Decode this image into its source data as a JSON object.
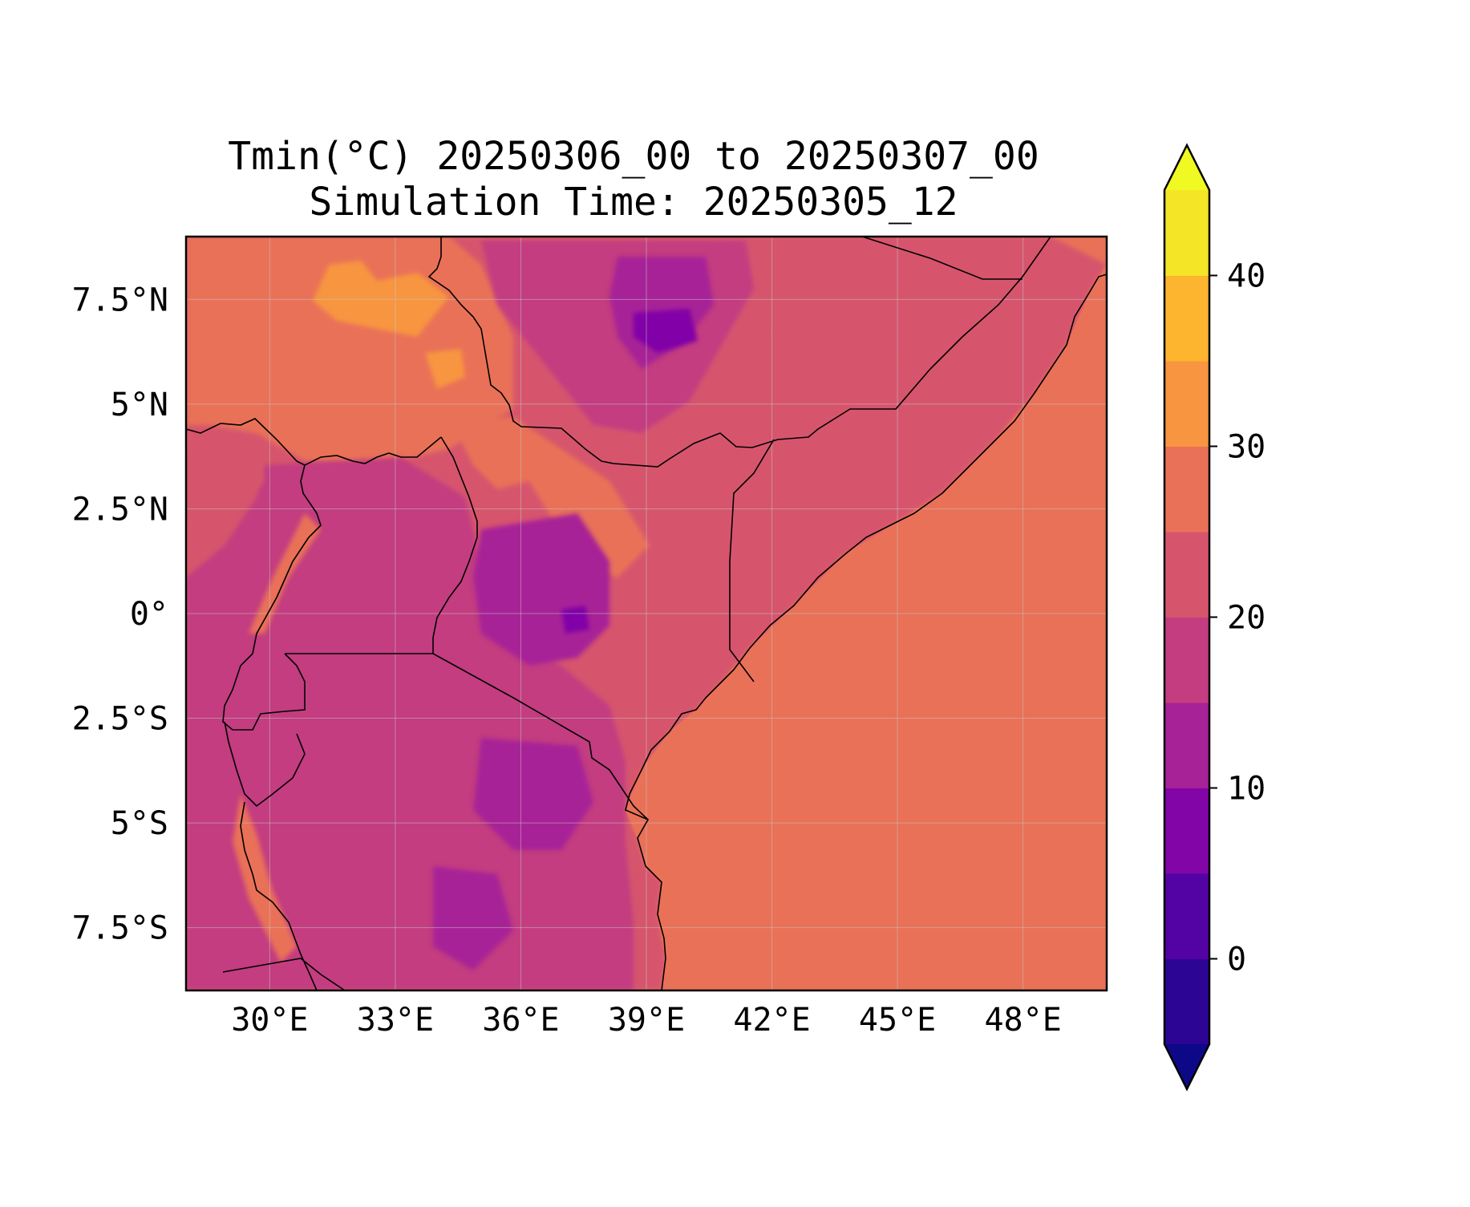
{
  "title_line1": "Tmin(°C) 20250306_00 to 20250307_00",
  "title_line2": "Simulation Time: 20250305_12",
  "map": {
    "lon_range": [
      28.0,
      50.0
    ],
    "lat_range": [
      -9.0,
      9.0
    ],
    "x_ticks": [
      "30°E",
      "33°E",
      "36°E",
      "39°E",
      "42°E",
      "45°E",
      "48°E"
    ],
    "x_tick_values": [
      30,
      33,
      36,
      39,
      42,
      45,
      48
    ],
    "y_ticks": [
      "7.5°N",
      "5°N",
      "2.5°N",
      "0°",
      "2.5°S",
      "5°S",
      "7.5°S"
    ],
    "y_tick_values": [
      7.5,
      5,
      2.5,
      0,
      -2.5,
      -5,
      -7.5
    ],
    "ocean_value_c": 27,
    "grid": true
  },
  "colorbar": {
    "levels": [
      -5,
      0,
      5,
      10,
      15,
      20,
      25,
      30,
      35,
      40,
      45
    ],
    "colors": [
      "#2c0594",
      "#5302a3",
      "#8105a7",
      "#a72197",
      "#c33d80",
      "#d6556d",
      "#e97158",
      "#f89540",
      "#fdb42f",
      "#f4e526"
    ],
    "under_color": "#0d0887",
    "over_color": "#f0f921",
    "tick_labels": [
      "0",
      "10",
      "20",
      "30",
      "40"
    ],
    "tick_values": [
      0,
      10,
      20,
      30,
      40
    ],
    "extend": "both"
  },
  "colors": {
    "coastline": "#000000",
    "grid": "#c8c8c8"
  }
}
